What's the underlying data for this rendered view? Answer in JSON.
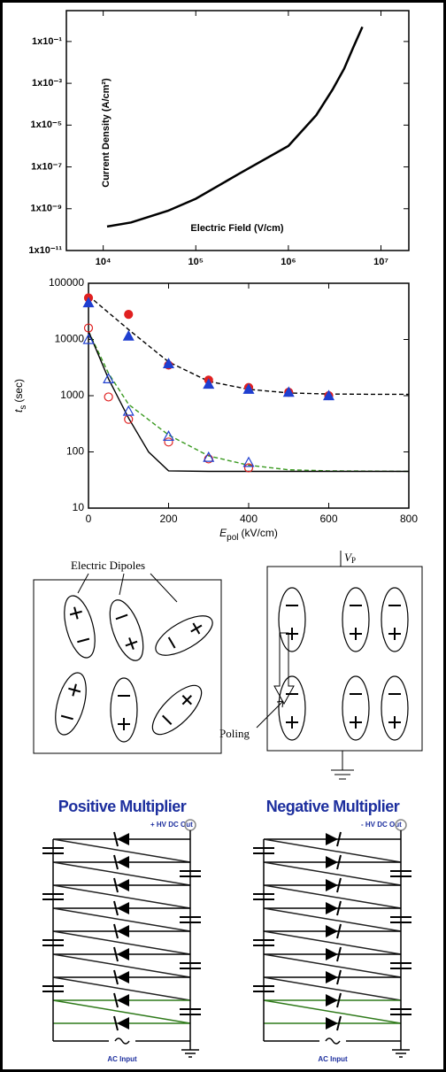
{
  "chart_data": [
    {
      "type": "line",
      "ylabel": "Current Density (A/cm²)",
      "xlabel": "Electric Field (V/cm)",
      "log_x": true,
      "log_y": true,
      "xlim": [
        4000,
        20000000
      ],
      "ylim": [
        1e-11,
        3
      ],
      "xticks": [
        {
          "value": 10000,
          "label": "10⁴"
        },
        {
          "value": 100000,
          "label": "10⁵"
        },
        {
          "value": 1000000,
          "label": "10⁶"
        },
        {
          "value": 10000000,
          "label": "10⁷"
        }
      ],
      "yticks": [
        {
          "value": 1e-11,
          "label": "1x10⁻¹¹"
        },
        {
          "value": 1e-09,
          "label": "1x10⁻⁹"
        },
        {
          "value": 1e-07,
          "label": "1x10⁻⁷"
        },
        {
          "value": 1e-05,
          "label": "1x10⁻⁵"
        },
        {
          "value": 0.001,
          "label": "1x10⁻³"
        },
        {
          "value": 0.1,
          "label": "1x10⁻¹"
        }
      ],
      "series": [
        {
          "color": "#000000",
          "line": "solid",
          "x": [
            11000,
            20000,
            50000,
            100000,
            300000,
            1000000,
            2000000,
            3000000,
            4000000,
            5000000,
            6300000
          ],
          "values": [
            1.4e-10,
            2.2e-10,
            8e-10,
            3e-09,
            5e-08,
            1e-06,
            3e-05,
            0.0005,
            0.005,
            0.05,
            0.5
          ]
        }
      ]
    },
    {
      "type": "scatter",
      "xlabel": {
        "symbol": "E",
        "subscript": "pol",
        "unit": "(kV/cm)"
      },
      "ylabel": {
        "symbol": "t",
        "subscript": "s",
        "unit": "(sec)"
      },
      "log_y": true,
      "xlim": [
        0,
        800
      ],
      "ylim": [
        10,
        100000
      ],
      "xticks": [
        0,
        200,
        400,
        600,
        800
      ],
      "yticks": [
        10,
        100,
        1000,
        10000,
        100000
      ],
      "series": [
        {
          "color": "#000000",
          "line": "dashed",
          "x": [
            0,
            100,
            200,
            300,
            400,
            500,
            600,
            700,
            800
          ],
          "values": [
            60000,
            15000,
            4000,
            1800,
            1300,
            1120,
            1070,
            1060,
            1055
          ]
        },
        {
          "color": "#3a9a20",
          "line": "dashed",
          "x": [
            0,
            50,
            100,
            200,
            300,
            400,
            500,
            600,
            800
          ],
          "values": [
            14000,
            2500,
            700,
            200,
            85,
            58,
            48,
            46,
            45
          ]
        },
        {
          "color": "#000000",
          "line": "solid",
          "x": [
            0,
            50,
            100,
            150,
            200,
            300,
            800
          ],
          "values": [
            14000,
            2000,
            400,
            100,
            46,
            45,
            45
          ]
        },
        {
          "color": "#e02020",
          "marker": "circle",
          "filled": true,
          "x": [
            0,
            100,
            200,
            300,
            400,
            500,
            600
          ],
          "values": [
            55000,
            28000,
            3500,
            1900,
            1400,
            1150,
            1000
          ]
        },
        {
          "color": "#1f3fd0",
          "marker": "triangle",
          "filled": true,
          "x": [
            0,
            100,
            200,
            300,
            400,
            500,
            600
          ],
          "values": [
            45000,
            11500,
            3700,
            1600,
            1300,
            1150,
            1000
          ]
        },
        {
          "color": "#e02020",
          "marker": "circle",
          "filled": false,
          "x": [
            0,
            50,
            100,
            200,
            300,
            400
          ],
          "values": [
            16000,
            950,
            380,
            150,
            75,
            52
          ]
        },
        {
          "color": "#1f3fd0",
          "marker": "triangle",
          "filled": false,
          "x": [
            0,
            50,
            100,
            200,
            300,
            400
          ],
          "values": [
            10000,
            2000,
            530,
            190,
            80,
            65
          ]
        }
      ]
    }
  ],
  "dipole_diagram": {
    "label": "Electric Dipoles",
    "voltage": {
      "symbol": "V",
      "subscript": "P"
    },
    "poling": "Poling"
  },
  "multipliers": [
    {
      "title": "Positive Multiplier",
      "output": "+ HV DC Out",
      "input": "AC Input"
    },
    {
      "title": "Negative Multiplier",
      "output": "- HV DC Out",
      "input": "AC Input"
    }
  ]
}
